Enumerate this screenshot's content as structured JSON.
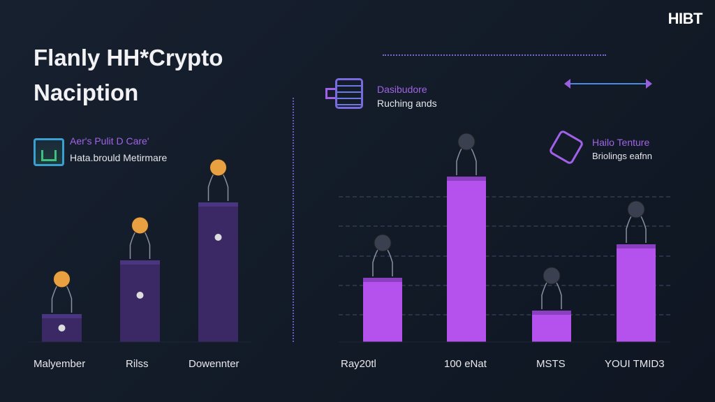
{
  "brand": "HIBT",
  "title": {
    "line1": "Flanly HH*Crypto",
    "line2": "Naciption"
  },
  "legends": [
    {
      "title": "Aer's Pulit D Care'",
      "subtitle": "Hata.brould Metirmare",
      "icon": "battery-chart-icon",
      "color": "#8a5ae0"
    },
    {
      "title": "Dasibudore",
      "subtitle": "Ruching ands",
      "icon": "list-document-icon",
      "color": "#a060e8"
    },
    {
      "title": "Hailo Tenture",
      "subtitle": "Briolings eafnn",
      "icon": "cube-icon",
      "color": "#a060e8"
    }
  ],
  "colors": {
    "left_bar": "#3b2966",
    "right_bar": "#b552ee",
    "background": "#141c2b"
  },
  "chart_data": [
    {
      "type": "bar",
      "title": "",
      "categories": [
        "Malyember",
        "Rilss",
        "Dowennter"
      ],
      "values": [
        40,
        117,
        200
      ],
      "ylim": [
        0,
        250
      ]
    },
    {
      "type": "bar",
      "title": "",
      "categories": [
        "Ray20tl",
        "100 eNat",
        "MSTS",
        "YOUI TMID3"
      ],
      "values": [
        92,
        237,
        45,
        140
      ],
      "ylim": [
        0,
        250
      ],
      "grid": true
    }
  ]
}
